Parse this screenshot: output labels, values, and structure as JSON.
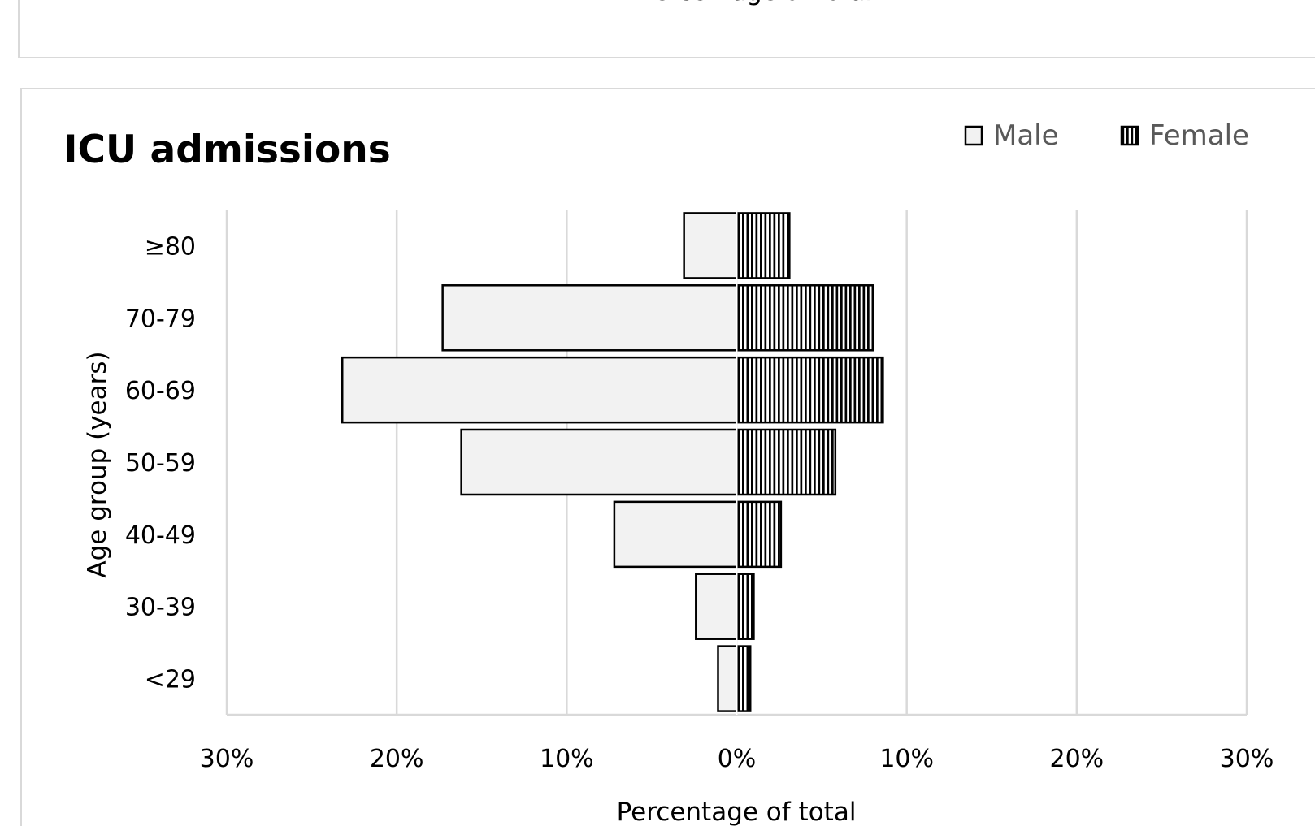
{
  "top_panel": {
    "axis_title": "Percentage of total"
  },
  "legend": [
    {
      "name": "Male",
      "pattern": "solid-light"
    },
    {
      "name": "Female",
      "pattern": "vertical-stripes"
    }
  ],
  "colors": {
    "male_fill": "#f2f2f2",
    "female_stripe": "#000000",
    "grid": "#d9d9d9",
    "border": "#000000"
  },
  "chart_data": {
    "type": "bar",
    "orientation": "horizontal-population-pyramid",
    "title": "ICU admissions",
    "ylabel": "Age group (years)",
    "xlabel": "Percentage of total",
    "categories": [
      "<29",
      "30-39",
      "40-49",
      "50-59",
      "60-69",
      "70-79",
      "≥80"
    ],
    "series": [
      {
        "name": "Male",
        "side": "left",
        "values": [
          1.1,
          2.4,
          7.2,
          16.2,
          23.2,
          17.3,
          3.1
        ]
      },
      {
        "name": "Female",
        "side": "right",
        "values": [
          0.8,
          1.0,
          2.6,
          5.8,
          8.6,
          8.0,
          3.1
        ]
      }
    ],
    "xlim": [
      -30,
      30
    ],
    "xticks": [
      {
        "value": -30,
        "label": "30%"
      },
      {
        "value": -20,
        "label": "20%"
      },
      {
        "value": -10,
        "label": "10%"
      },
      {
        "value": 0,
        "label": "0%"
      },
      {
        "value": 10,
        "label": "10%"
      },
      {
        "value": 20,
        "label": "20%"
      },
      {
        "value": 30,
        "label": "30%"
      }
    ],
    "grid": true,
    "legend_position": "top-right"
  }
}
